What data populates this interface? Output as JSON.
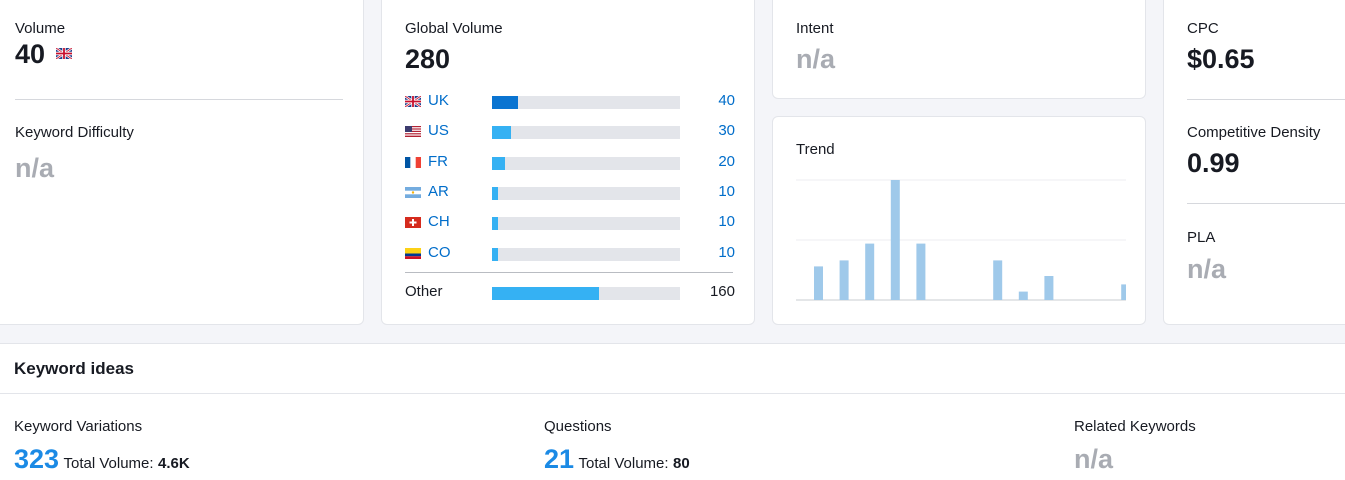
{
  "volume": {
    "label": "Volume",
    "value": "40",
    "flag_icon": "uk-flag-icon"
  },
  "keyword_difficulty": {
    "label": "Keyword Difficulty",
    "value": "n/a"
  },
  "global_volume": {
    "label": "Global Volume",
    "value": "280",
    "rows": [
      {
        "country": "UK",
        "value": "40",
        "fraction": 0.14,
        "color": "#0a74d1"
      },
      {
        "country": "US",
        "value": "30",
        "fraction": 0.1,
        "color": "#35b1f3"
      },
      {
        "country": "FR",
        "value": "20",
        "fraction": 0.07,
        "color": "#35b1f3"
      },
      {
        "country": "AR",
        "value": "10",
        "fraction": 0.03,
        "color": "#35b1f3"
      },
      {
        "country": "CH",
        "value": "10",
        "fraction": 0.03,
        "color": "#35b1f3"
      },
      {
        "country": "CO",
        "value": "10",
        "fraction": 0.03,
        "color": "#35b1f3"
      }
    ],
    "other": {
      "label": "Other",
      "value": "160",
      "fraction": 0.57,
      "color": "#35b1f3"
    }
  },
  "intent": {
    "label": "Intent",
    "value": "n/a"
  },
  "trend": {
    "label": "Trend",
    "chart_data": {
      "type": "bar",
      "values": [
        0.28,
        0.33,
        0.47,
        1.0,
        0.47,
        0,
        0,
        0.33,
        0.07,
        0.2,
        0,
        0,
        0.13
      ],
      "grid": true,
      "color": "#9fc9ea"
    }
  },
  "cpc": {
    "label": "CPC",
    "value": "$0.65"
  },
  "competitive_density": {
    "label": "Competitive Density",
    "value": "0.99"
  },
  "pla": {
    "label": "PLA",
    "value": "n/a"
  },
  "keyword_ideas": {
    "title": "Keyword ideas",
    "variations": {
      "label": "Keyword Variations",
      "count": "323",
      "total_label": "Total Volume:",
      "total_value": "4.6K"
    },
    "questions": {
      "label": "Questions",
      "count": "21",
      "total_label": "Total Volume:",
      "total_value": "80"
    },
    "related": {
      "label": "Related Keywords",
      "value": "n/a"
    }
  }
}
